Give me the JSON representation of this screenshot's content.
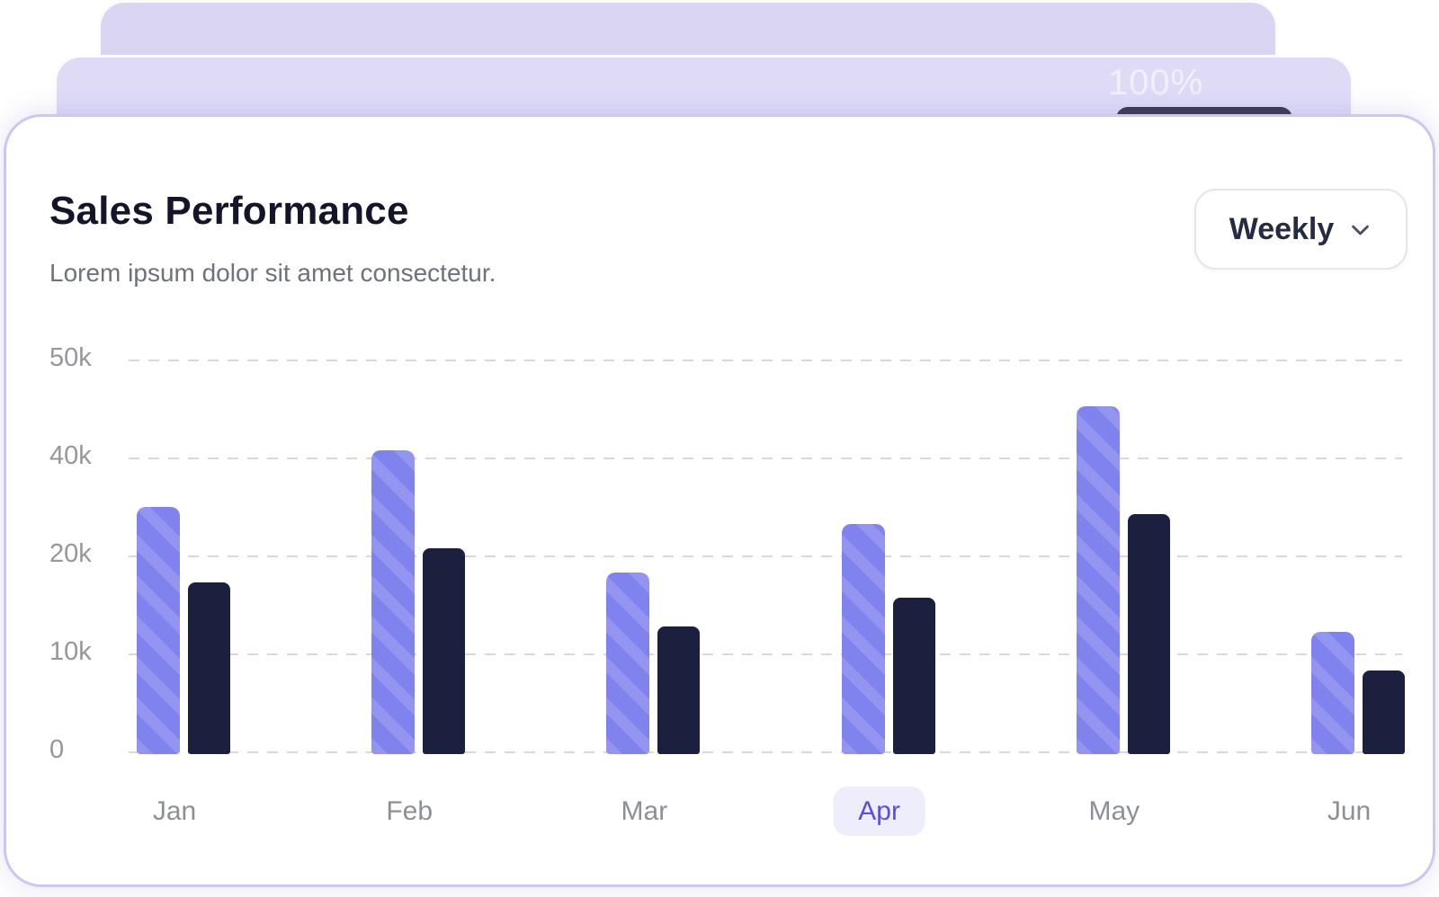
{
  "page": {
    "background": "#ffffff"
  },
  "card_stack": {
    "progress_label": "100%",
    "back_card_color": "#d9d5f2",
    "middle_card_color": "#dfdbf7",
    "pill_color": "#3f3d56"
  },
  "card": {
    "title": "Sales Performance",
    "subtitle": "Lorem ipsum dolor sit amet consectetur.",
    "period_selector": {
      "label": "Weekly",
      "icon": "chevron-down"
    }
  },
  "chart_data": {
    "type": "bar",
    "title": "Sales Performance",
    "categories": [
      "Jan",
      "Feb",
      "Mar",
      "Apr",
      "May",
      "Jun"
    ],
    "series": [
      {
        "key": "series_1",
        "style": "striped-violet",
        "color": "#8082ee",
        "unit": "k",
        "values": [
          30.5,
          41,
          18.5,
          27,
          45.5,
          12.5
        ]
      },
      {
        "key": "series_2",
        "style": "solid-navy",
        "color": "#1d1f3e",
        "unit": "k",
        "values": [
          17.5,
          22,
          13,
          16,
          29,
          8.5
        ]
      }
    ],
    "y_ticks": [
      "50k",
      "40k",
      "20k",
      "10k",
      "0"
    ],
    "y_tick_values": [
      50000,
      40000,
      20000,
      10000,
      0
    ],
    "y_axis_spacing": "ticks evenly spaced as labeled",
    "highlighted_category": "Apr",
    "highlight_color": "#5b4de0",
    "grid": "horizontal-dashed",
    "legend": "none",
    "xlabel": "",
    "ylabel": ""
  }
}
